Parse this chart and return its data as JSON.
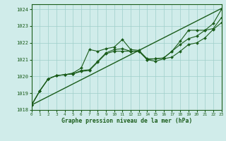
{
  "title": "Graphe pression niveau de la mer (hPa)",
  "bg_color": "#d0ecea",
  "grid_color": "#9ecfca",
  "line_color": "#1a5c1a",
  "xlim": [
    0,
    23
  ],
  "ylim": [
    1018.0,
    1024.3
  ],
  "yticks": [
    1018,
    1019,
    1020,
    1021,
    1022,
    1023,
    1024
  ],
  "xticks": [
    0,
    1,
    2,
    3,
    4,
    5,
    6,
    7,
    8,
    9,
    10,
    11,
    12,
    13,
    14,
    15,
    16,
    17,
    18,
    19,
    20,
    21,
    22,
    23
  ],
  "series": [
    {
      "x": [
        0,
        23
      ],
      "y": [
        1018.3,
        1024.05
      ],
      "lw": 1.0,
      "ls": "-",
      "marker": null
    },
    {
      "x": [
        0,
        1,
        2,
        3,
        4,
        5,
        6,
        7,
        8,
        9,
        10,
        11,
        12,
        13,
        14,
        15,
        16,
        17,
        18,
        19,
        20,
        21,
        22,
        23
      ],
      "y": [
        1018.3,
        1019.15,
        1019.85,
        1020.05,
        1020.1,
        1020.15,
        1020.3,
        1020.35,
        1020.85,
        1021.35,
        1021.5,
        1021.5,
        1021.5,
        1021.5,
        1021.0,
        1020.9,
        1021.05,
        1021.15,
        1021.5,
        1021.9,
        1022.0,
        1022.3,
        1022.8,
        1023.2
      ],
      "lw": 0.8,
      "ls": "-",
      "marker": "D",
      "ms": 2.0
    },
    {
      "x": [
        0,
        1,
        2,
        3,
        4,
        5,
        6,
        7,
        8,
        9,
        10,
        11,
        12,
        13,
        14,
        15,
        16,
        17,
        18,
        19,
        20,
        21,
        22,
        23
      ],
      "y": [
        1018.3,
        1019.15,
        1019.85,
        1020.05,
        1020.1,
        1020.15,
        1020.35,
        1020.4,
        1020.9,
        1021.4,
        1021.6,
        1021.65,
        1021.5,
        1021.5,
        1021.0,
        1021.05,
        1021.1,
        1021.5,
        1021.9,
        1022.25,
        1022.4,
        1022.75,
        1022.85,
        1023.5
      ],
      "lw": 0.8,
      "ls": "-",
      "marker": "D",
      "ms": 2.0
    },
    {
      "x": [
        0,
        1,
        2,
        3,
        4,
        5,
        6,
        7,
        8,
        9,
        10,
        11,
        12,
        13,
        14,
        15,
        16,
        17,
        18,
        19,
        20,
        21,
        22,
        23
      ],
      "y": [
        1018.3,
        1019.15,
        1019.85,
        1020.05,
        1020.1,
        1020.2,
        1020.5,
        1021.6,
        1021.5,
        1021.65,
        1021.75,
        1022.2,
        1021.6,
        1021.55,
        1021.05,
        1021.05,
        1021.1,
        1021.5,
        1022.1,
        1022.75,
        1022.75,
        1022.75,
        1023.15,
        1024.0
      ],
      "lw": 0.8,
      "ls": "-",
      "marker": "D",
      "ms": 2.0
    }
  ]
}
